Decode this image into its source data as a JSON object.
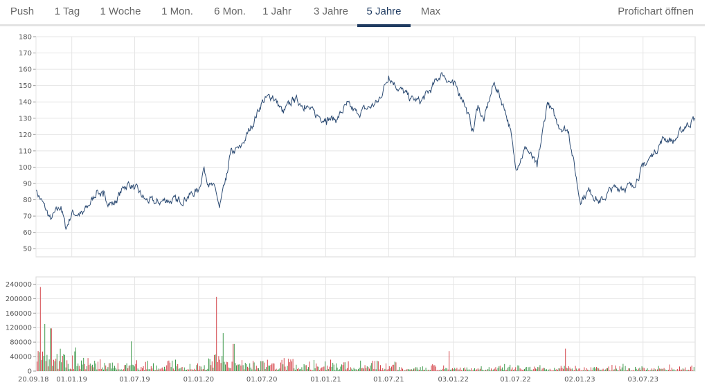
{
  "tabs": [
    {
      "label": "Push",
      "active": false
    },
    {
      "label": "1 Tag",
      "active": false
    },
    {
      "label": "1 Woche",
      "active": false
    },
    {
      "label": "1 Mon.",
      "active": false
    },
    {
      "label": "6 Mon.",
      "active": false
    },
    {
      "label": "1 Jahr",
      "active": false
    },
    {
      "label": "3 Jahre",
      "active": false
    },
    {
      "label": "5 Jahre",
      "active": true
    },
    {
      "label": "Max",
      "active": false
    }
  ],
  "prochart_label": "Profichart öffnen",
  "colors": {
    "accent": "#1f3b61",
    "price_line": "#2b4a72",
    "volume_up": "#3f9a4c",
    "volume_down": "#d4454b",
    "grid": "#e5e5e5"
  },
  "chart_data": [
    {
      "type": "line",
      "x_start": "20.09.18",
      "x_end": "30.11.23",
      "y_ticks": [
        "180",
        "170",
        "160",
        "150",
        "140",
        "130",
        "120",
        "110",
        "100",
        "90",
        "80",
        "70",
        "60",
        "50"
      ],
      "ylim": [
        45,
        180
      ],
      "grid": true,
      "x_tick_labels": [
        "20.09.18",
        "01.01.19",
        "01.07.19",
        "01.01.20",
        "01.07.20",
        "01.01.21",
        "01.07.21",
        "03.01.22",
        "01.07.22",
        "02.01.23",
        "03.07.23"
      ],
      "x": [
        "20.09.18",
        "01.11.18",
        "01.12.18",
        "15.12.18",
        "01.01.19",
        "01.02.19",
        "01.03.19",
        "15.03.19",
        "01.04.19",
        "01.05.19",
        "01.06.19",
        "15.06.19",
        "01.07.19",
        "01.08.19",
        "01.09.19",
        "01.10.19",
        "01.11.19",
        "01.12.19",
        "01.01.20",
        "15.01.20",
        "01.02.20",
        "20.02.20",
        "01.03.20",
        "20.03.20",
        "01.04.20",
        "01.05.20",
        "01.06.20",
        "01.07.20",
        "01.08.20",
        "01.09.20",
        "01.10.20",
        "01.11.20",
        "01.12.20",
        "01.01.21",
        "01.02.21",
        "01.03.21",
        "01.04.21",
        "01.05.21",
        "01.06.21",
        "01.07.21",
        "01.08.21",
        "01.09.21",
        "01.10.21",
        "01.11.21",
        "01.12.21",
        "03.01.22",
        "15.01.22",
        "01.02.22",
        "01.03.22",
        "15.03.22",
        "01.04.22",
        "15.04.22",
        "01.05.22",
        "01.06.22",
        "15.06.22",
        "01.07.22",
        "01.08.22",
        "01.09.22",
        "01.10.22",
        "01.11.22",
        "01.12.22",
        "02.01.23",
        "01.02.23",
        "01.03.23",
        "01.04.23",
        "01.05.23",
        "01.06.23",
        "03.07.23",
        "01.08.23",
        "01.09.23",
        "01.10.23",
        "01.11.23",
        "30.11.23"
      ],
      "values": [
        86,
        68,
        76,
        62,
        72,
        71,
        80,
        86,
        82,
        77,
        88,
        90,
        87,
        80,
        78,
        80,
        79,
        82,
        86,
        99,
        90,
        85,
        75,
        92,
        108,
        112,
        125,
        140,
        144,
        133,
        142,
        138,
        132,
        130,
        129,
        138,
        133,
        136,
        140,
        156,
        148,
        142,
        140,
        148,
        158,
        150,
        148,
        141,
        122,
        138,
        128,
        140,
        152,
        135,
        124,
        100,
        112,
        100,
        140,
        126,
        122,
        80,
        86,
        78,
        86,
        88,
        88,
        100,
        108,
        118,
        116,
        125,
        130
      ]
    },
    {
      "type": "bar",
      "series_name_up": "up",
      "y_ticks": [
        "240000",
        "200000",
        "160000",
        "120000",
        "80000",
        "40000",
        "0"
      ],
      "ylim": [
        0,
        260000
      ],
      "grid": true,
      "spikes": [
        {
          "x": "01.10.18",
          "value": 232000
        },
        {
          "x": "15.10.18",
          "value": 130000
        },
        {
          "x": "01.11.18",
          "value": 118000
        },
        {
          "x": "20.06.19",
          "value": 82000
        },
        {
          "x": "20.02.20",
          "value": 205000
        },
        {
          "x": "10.03.20",
          "value": 105000
        },
        {
          "x": "10.04.20",
          "value": 75000
        },
        {
          "x": "20.12.21",
          "value": 55000
        },
        {
          "x": "20.11.22",
          "value": 62000
        }
      ]
    }
  ]
}
